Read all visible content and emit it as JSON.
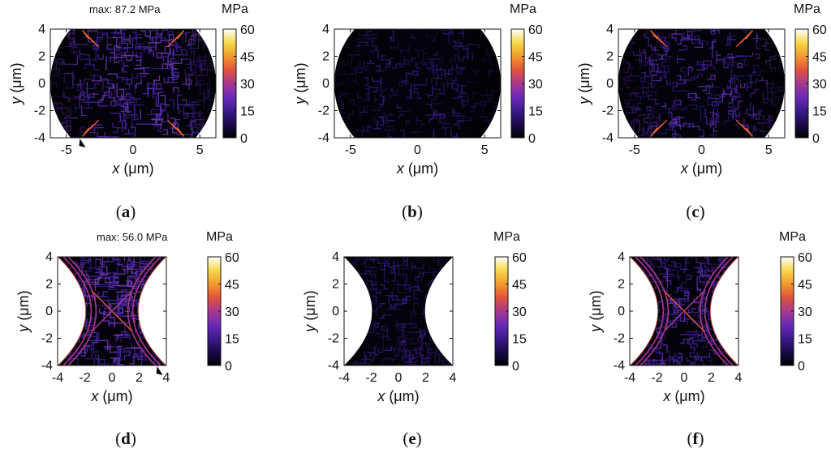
{
  "chart_data": [
    {
      "type": "heatmap",
      "panel_label": "(a)",
      "shape": "circle-truncated",
      "xlabel_var": "x",
      "xlabel_unit": "(μm)",
      "ylabel_var": "y",
      "ylabel_unit": "(μm)",
      "xlim": [
        -6.2,
        6.2
      ],
      "ylim": [
        -4,
        4
      ],
      "xticks": [
        "-5",
        "0",
        "5"
      ],
      "yticks": [
        "4",
        "2",
        "0",
        "-2",
        "-4"
      ],
      "colorbar": {
        "unit": "MPa",
        "min": 0,
        "max": 60,
        "ticks": [
          "60",
          "45",
          "30",
          "15",
          "0"
        ]
      },
      "annotation": "max: 87.2 MPa",
      "intensity": "high",
      "max_marker": true
    },
    {
      "type": "heatmap",
      "panel_label": "(b)",
      "shape": "circle-truncated",
      "xlabel_var": "x",
      "xlabel_unit": "(μm)",
      "ylabel_var": "y",
      "ylabel_unit": "(μm)",
      "xlim": [
        -6.2,
        6.2
      ],
      "ylim": [
        -4,
        4
      ],
      "xticks": [
        "-5",
        "0",
        "5"
      ],
      "yticks": [
        "4",
        "2",
        "0",
        "-2",
        "-4"
      ],
      "colorbar": {
        "unit": "MPa",
        "min": 0,
        "max": 60,
        "ticks": [
          "60",
          "45",
          "30",
          "15",
          "0"
        ]
      },
      "annotation": "",
      "intensity": "low",
      "max_marker": false
    },
    {
      "type": "heatmap",
      "panel_label": "(c)",
      "shape": "circle-truncated",
      "xlabel_var": "x",
      "xlabel_unit": "(μm)",
      "ylabel_var": "y",
      "ylabel_unit": "(μm)",
      "xlim": [
        -6.2,
        6.2
      ],
      "ylim": [
        -4,
        4
      ],
      "xticks": [
        "-5",
        "0",
        "5"
      ],
      "yticks": [
        "4",
        "2",
        "0",
        "-2",
        "-4"
      ],
      "colorbar": {
        "unit": "MPa",
        "min": 0,
        "max": 60,
        "ticks": [
          "60",
          "45",
          "30",
          "15",
          "0"
        ]
      },
      "annotation": "",
      "intensity": "medium",
      "max_marker": false
    },
    {
      "type": "heatmap",
      "panel_label": "(d)",
      "shape": "hourglass",
      "xlabel_var": "x",
      "xlabel_unit": "(μm)",
      "ylabel_var": "y",
      "ylabel_unit": "(μm)",
      "xlim": [
        -4,
        4
      ],
      "ylim": [
        -4,
        4
      ],
      "xticks": [
        "-4",
        "-2",
        "0",
        "2",
        "4"
      ],
      "yticks": [
        "4",
        "2",
        "0",
        "-2",
        "-4"
      ],
      "colorbar": {
        "unit": "MPa",
        "min": 0,
        "max": 60,
        "ticks": [
          "60",
          "45",
          "30",
          "15",
          "0"
        ]
      },
      "annotation": "max: 56.0 MPa",
      "intensity": "high",
      "max_marker": true
    },
    {
      "type": "heatmap",
      "panel_label": "(e)",
      "shape": "hourglass",
      "xlabel_var": "x",
      "xlabel_unit": "(μm)",
      "ylabel_var": "y",
      "ylabel_unit": "(μm)",
      "xlim": [
        -4,
        4
      ],
      "ylim": [
        -4,
        4
      ],
      "xticks": [
        "-4",
        "-2",
        "0",
        "2",
        "4"
      ],
      "yticks": [
        "4",
        "2",
        "0",
        "-2",
        "-4"
      ],
      "colorbar": {
        "unit": "MPa",
        "min": 0,
        "max": 60,
        "ticks": [
          "60",
          "45",
          "30",
          "15",
          "0"
        ]
      },
      "annotation": "",
      "intensity": "low",
      "max_marker": false
    },
    {
      "type": "heatmap",
      "panel_label": "(f)",
      "shape": "hourglass",
      "xlabel_var": "x",
      "xlabel_unit": "(μm)",
      "ylabel_var": "y",
      "ylabel_unit": "(μm)",
      "xlim": [
        -4,
        4
      ],
      "ylim": [
        -4,
        4
      ],
      "xticks": [
        "-4",
        "-2",
        "0",
        "2",
        "4"
      ],
      "yticks": [
        "4",
        "2",
        "0",
        "-2",
        "-4"
      ],
      "colorbar": {
        "unit": "MPa",
        "min": 0,
        "max": 60,
        "ticks": [
          "60",
          "45",
          "30",
          "15",
          "0"
        ]
      },
      "annotation": "",
      "intensity": "medium",
      "max_marker": false
    }
  ],
  "colors": {
    "colormap": [
      "#000000",
      "#1a0a4a",
      "#3d1a8c",
      "#6a2ab8",
      "#a8388f",
      "#e0533a",
      "#f29a2e",
      "#f5d84a",
      "#ffffff"
    ],
    "background": "#ffffff",
    "axis": "#111111"
  }
}
